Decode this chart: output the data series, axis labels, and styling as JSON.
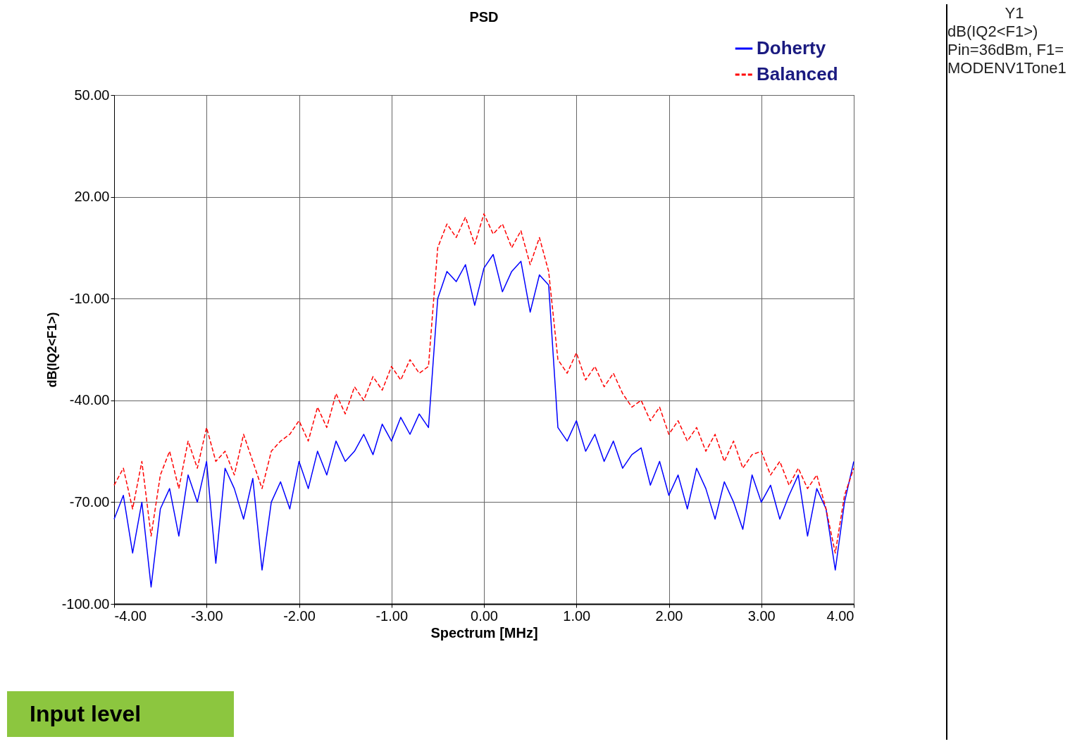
{
  "chart_data": {
    "type": "line",
    "title": "PSD",
    "xlabel": "Spectrum [MHz]",
    "ylabel": "dB(IQ2<F1>)",
    "x": [
      -4.0,
      -3.9,
      -3.8,
      -3.7,
      -3.6,
      -3.5,
      -3.4,
      -3.3,
      -3.2,
      -3.1,
      -3.0,
      -2.9,
      -2.8,
      -2.7,
      -2.6,
      -2.5,
      -2.4,
      -2.3,
      -2.2,
      -2.1,
      -2.0,
      -1.9,
      -1.8,
      -1.7,
      -1.6,
      -1.5,
      -1.4,
      -1.3,
      -1.2,
      -1.1,
      -1.0,
      -0.9,
      -0.8,
      -0.7,
      -0.6,
      -0.5,
      -0.4,
      -0.3,
      -0.2,
      -0.1,
      0.0,
      0.1,
      0.2,
      0.3,
      0.4,
      0.5,
      0.6,
      0.7,
      0.8,
      0.9,
      1.0,
      1.1,
      1.2,
      1.3,
      1.4,
      1.5,
      1.6,
      1.7,
      1.8,
      1.9,
      2.0,
      2.1,
      2.2,
      2.3,
      2.4,
      2.5,
      2.6,
      2.7,
      2.8,
      2.9,
      3.0,
      3.1,
      3.2,
      3.3,
      3.4,
      3.5,
      3.6,
      3.7,
      3.8,
      3.9,
      4.0
    ],
    "series": [
      {
        "name": "Doherty",
        "color": "#0000ff",
        "line_style": "solid",
        "values": [
          -75,
          -68,
          -85,
          -70,
          -95,
          -72,
          -66,
          -80,
          -62,
          -70,
          -58,
          -88,
          -60,
          -66,
          -75,
          -63,
          -90,
          -70,
          -64,
          -72,
          -58,
          -66,
          -55,
          -62,
          -52,
          -58,
          -55,
          -50,
          -56,
          -47,
          -52,
          -45,
          -50,
          -44,
          -48,
          -10,
          -2,
          -5,
          0,
          -12,
          -1,
          3,
          -8,
          -2,
          1,
          -14,
          -3,
          -6,
          -48,
          -52,
          -46,
          -55,
          -50,
          -58,
          -52,
          -60,
          -56,
          -54,
          -65,
          -58,
          -68,
          -62,
          -72,
          -60,
          -66,
          -75,
          -64,
          -70,
          -78,
          -62,
          -70,
          -65,
          -75,
          -68,
          -62,
          -80,
          -66,
          -72,
          -90,
          -70,
          -58
        ]
      },
      {
        "name": "Balanced",
        "color": "#ff0000",
        "line_style": "dashed",
        "values": [
          -65,
          -60,
          -72,
          -58,
          -80,
          -62,
          -55,
          -66,
          -52,
          -60,
          -48,
          -58,
          -55,
          -62,
          -50,
          -58,
          -66,
          -55,
          -52,
          -50,
          -46,
          -52,
          -42,
          -48,
          -38,
          -44,
          -36,
          -40,
          -33,
          -37,
          -30,
          -34,
          -28,
          -32,
          -30,
          5,
          12,
          8,
          14,
          6,
          15,
          9,
          12,
          5,
          10,
          0,
          8,
          -2,
          -28,
          -32,
          -26,
          -34,
          -30,
          -36,
          -32,
          -38,
          -42,
          -40,
          -46,
          -42,
          -50,
          -46,
          -52,
          -48,
          -55,
          -50,
          -58,
          -52,
          -60,
          -56,
          -55,
          -62,
          -58,
          -65,
          -60,
          -66,
          -62,
          -72,
          -85,
          -68,
          -60
        ]
      }
    ],
    "xlim": [
      -4,
      4
    ],
    "xticks": [
      {
        "value": -4,
        "label": "-4.00"
      },
      {
        "value": -3,
        "label": "-3.00"
      },
      {
        "value": -2,
        "label": "-2.00"
      },
      {
        "value": -1,
        "label": "-1.00"
      },
      {
        "value": 0,
        "label": "0.00"
      },
      {
        "value": 1,
        "label": "1.00"
      },
      {
        "value": 2,
        "label": "2.00"
      },
      {
        "value": 3,
        "label": "3.00"
      },
      {
        "value": 4,
        "label": "4.00"
      }
    ],
    "ylim": [
      -100,
      50
    ],
    "yticks": [
      {
        "value": -100,
        "label": "-100.00"
      },
      {
        "value": -70,
        "label": "-70.00"
      },
      {
        "value": -40,
        "label": "-40.00"
      },
      {
        "value": -10,
        "label": "-10.00"
      },
      {
        "value": 20,
        "label": "20.00"
      },
      {
        "value": 50,
        "label": "50.00"
      }
    ],
    "grid": true,
    "legend": "top right",
    "annotations": [
      "Input level",
      "Y1",
      "dB(IQ2<F1>)",
      "Pin=36dBm, F1=",
      "MODENV1Tone1"
    ]
  }
}
